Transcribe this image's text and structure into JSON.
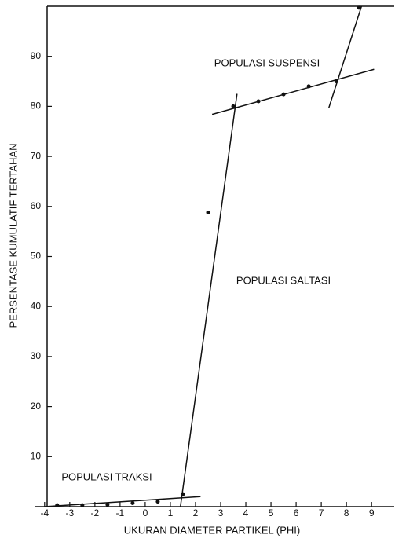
{
  "chart_data": {
    "type": "scatter",
    "xlabel": "UKURAN DIAMETER PARTIKEL  (PHI)",
    "ylabel": "PERSENTASE KUMULATIF TERTAHAN",
    "annotations": [
      "POPULASI SUSPENSI",
      "POPULASI SALTASI",
      "POPULASI TRAKSI"
    ],
    "x": [
      -3.5,
      -2.5,
      -1.5,
      -0.5,
      0.5,
      1.5,
      2.5,
      3.5,
      4.5,
      5.5,
      6.5,
      7.6,
      8.5
    ],
    "values": [
      0.3,
      0.3,
      0.4,
      0.7,
      1,
      2.5,
      58.8,
      80,
      81,
      82.4,
      84,
      85,
      99.7
    ],
    "color": "#111111",
    "fit_lines": [
      {
        "x": [
          -4,
          2.2
        ],
        "y": [
          0,
          2
        ]
      },
      {
        "x": [
          1.4,
          3.65
        ],
        "y": [
          0,
          82.5
        ]
      },
      {
        "x": [
          2.66,
          9.1
        ],
        "y": [
          78.4,
          87.4
        ]
      },
      {
        "x": [
          7.3,
          8.6
        ],
        "y": [
          79.7,
          100
        ]
      }
    ],
    "xlim": [
      -3.9,
      9.9
    ],
    "ylim": [
      0,
      100
    ],
    "xticks": [
      -4,
      -3,
      -2,
      -1,
      0,
      1,
      2,
      3,
      4,
      5,
      6,
      7,
      8,
      9
    ],
    "yticks": [
      10,
      20,
      30,
      40,
      50,
      60,
      70,
      80,
      90
    ]
  }
}
